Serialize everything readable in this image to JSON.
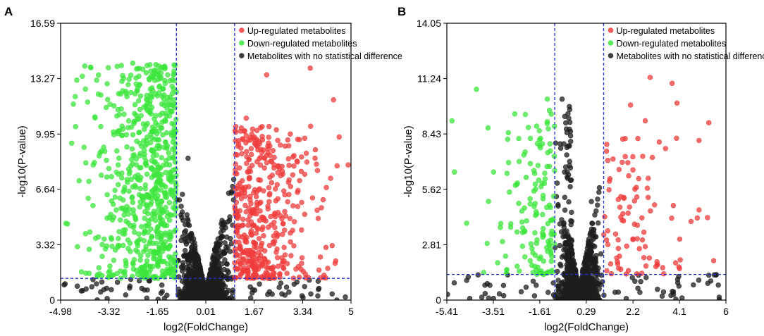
{
  "colors": {
    "up": "#f03c3c",
    "down": "#3ce63c",
    "none": "#1e1e1e",
    "threshold": "#1f2fd6",
    "axis": "#000000"
  },
  "chart_data": [
    {
      "type": "scatter",
      "panel_label": "A",
      "xlabel": "log2(FoldChange)",
      "ylabel": "-log10(P-value)",
      "xlim": [
        -4.98,
        5
      ],
      "ylim": [
        0,
        16.59
      ],
      "x_ticks": [
        -4.98,
        -3.32,
        -1.65,
        0.01,
        1.67,
        3.34,
        5
      ],
      "x_tick_labels": [
        "-4.98",
        "-3.32",
        "-1.65",
        "0.01",
        "1.67",
        "3.34",
        "5"
      ],
      "y_ticks": [
        0,
        3.32,
        6.64,
        9.95,
        13.27,
        16.59
      ],
      "y_tick_labels": [
        "0",
        "3.32",
        "6.64",
        "9.95",
        "13.27",
        "16.59"
      ],
      "thresholds": {
        "x": [
          -1,
          1
        ],
        "y": 1.3
      },
      "legend_position": "top-right",
      "legend": [
        {
          "label": "Up-regulated metabolites",
          "key": "up"
        },
        {
          "label": "Down-regulated metabolites",
          "key": "down"
        },
        {
          "label": "Metabolites with no statistical difference",
          "key": "none"
        }
      ],
      "sample_points": {
        "up": [
          [
            3.6,
            13.9
          ],
          [
            2.1,
            13.5
          ],
          [
            1.4,
            10.9
          ],
          [
            4.4,
            12.0
          ],
          [
            2.5,
            8.0
          ],
          [
            3.0,
            7.5
          ],
          [
            1.8,
            9.0
          ],
          [
            4.9,
            8.1
          ],
          [
            4.3,
            7.3
          ],
          [
            3.9,
            1.8
          ],
          [
            4.2,
            1.9
          ],
          [
            2.8,
            1.6
          ],
          [
            1.2,
            3.1
          ],
          [
            2.4,
            5.0
          ],
          [
            3.3,
            4.2
          ],
          [
            1.6,
            2.4
          ]
        ],
        "down": [
          [
            -2.5,
            14.2
          ],
          [
            -1.3,
            13.5
          ],
          [
            -4.6,
            9.4
          ],
          [
            -4.4,
            3.2
          ],
          [
            -3.1,
            3.0
          ],
          [
            -2.2,
            4.4
          ],
          [
            -3.6,
            10.4
          ],
          [
            -1.6,
            9.6
          ],
          [
            -2.9,
            5.5
          ],
          [
            -1.9,
            2.0
          ],
          [
            -4.8,
            4.6
          ],
          [
            -2.0,
            12.0
          ],
          [
            -3.0,
            8.1
          ],
          [
            -1.2,
            6.6
          ],
          [
            -4.0,
            1.6
          ]
        ],
        "none": [
          [
            0.0,
            0.1
          ],
          [
            0.1,
            1.0
          ],
          [
            -0.3,
            2.5
          ],
          [
            0.5,
            3.5
          ],
          [
            -0.9,
            6.0
          ],
          [
            0.9,
            6.5
          ],
          [
            -0.6,
            8.5
          ],
          [
            0.4,
            1.8
          ],
          [
            -1.5,
            0.9
          ],
          [
            2.2,
            0.5
          ],
          [
            3.9,
            0.7
          ],
          [
            -2.1,
            0.6
          ],
          [
            0.6,
            0.3
          ],
          [
            -0.2,
            0.8
          ]
        ]
      }
    },
    {
      "type": "scatter",
      "panel_label": "B",
      "xlabel": "log2(FoldChange)",
      "ylabel": "-log10(P-value)",
      "xlim": [
        -5.41,
        6
      ],
      "ylim": [
        0,
        14.05
      ],
      "x_ticks": [
        -5.41,
        -3.51,
        -1.61,
        0.29,
        2.2,
        4.1,
        6
      ],
      "x_tick_labels": [
        "-5.41",
        "-3.51",
        "-1.61",
        "0.29",
        "2.2",
        "4.1",
        "6"
      ],
      "y_ticks": [
        0,
        2.81,
        5.62,
        8.43,
        11.24,
        14.05
      ],
      "y_tick_labels": [
        "0",
        "2.81",
        "5.62",
        "8.43",
        "11.24",
        "14.05"
      ],
      "thresholds": {
        "x": [
          -1,
          1
        ],
        "y": 1.3
      },
      "legend_position": "top-right",
      "legend": [
        {
          "label": "Up-regulated metabolites",
          "key": "up"
        },
        {
          "label": "Down-regulated metabolites",
          "key": "down"
        },
        {
          "label": "Metabolites with no statistical difference",
          "key": "none"
        }
      ],
      "sample_points": {
        "up": [
          [
            2.9,
            11.3
          ],
          [
            3.8,
            11.0
          ],
          [
            4.0,
            10.0
          ],
          [
            2.1,
            9.9
          ],
          [
            5.3,
            9.0
          ],
          [
            2.7,
            9.1
          ],
          [
            2.4,
            8.2
          ],
          [
            4.9,
            8.1
          ],
          [
            1.6,
            5.1
          ],
          [
            4.1,
            1.6
          ],
          [
            3.2,
            1.8
          ],
          [
            2.2,
            3.1
          ],
          [
            5.5,
            2.0
          ]
        ],
        "down": [
          [
            -4.2,
            10.7
          ],
          [
            -5.2,
            9.1
          ],
          [
            -5.1,
            6.5
          ],
          [
            -3.5,
            6.5
          ],
          [
            -4.6,
            3.9
          ],
          [
            -2.8,
            3.7
          ],
          [
            -1.8,
            4.9
          ],
          [
            -1.3,
            10.2
          ],
          [
            -3.9,
            1.4
          ],
          [
            -1.2,
            2.6
          ],
          [
            -2.0,
            2.0
          ]
        ],
        "none": [
          [
            -0.7,
            10.2
          ],
          [
            -0.5,
            8.5
          ],
          [
            0.3,
            0.2
          ],
          [
            0.2,
            1.0
          ],
          [
            -0.3,
            3.0
          ],
          [
            0.5,
            5.0
          ],
          [
            -0.6,
            6.5
          ],
          [
            2.4,
            0.6
          ],
          [
            -4.6,
            1.0
          ],
          [
            1.6,
            0.4
          ]
        ]
      }
    }
  ]
}
